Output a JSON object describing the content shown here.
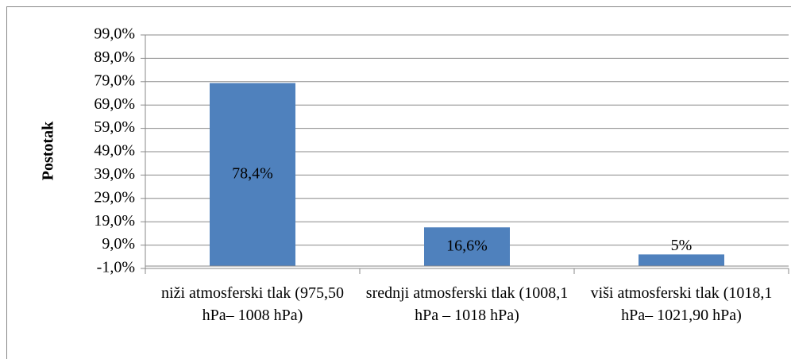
{
  "chart_data": {
    "type": "bar",
    "y_label": "Postotak",
    "categories": [
      "niži atmosferski tlak (975,50 hPa– 1008 hPa)",
      "srednji atmosferski tlak (1008,1 hPa – 1018 hPa)",
      "viši atmosferski tlak (1018,1 hPa– 1021,90 hPa)"
    ],
    "values": [
      78.4,
      16.6,
      5
    ],
    "value_labels": [
      "78,4%",
      "16,6%",
      "5%"
    ],
    "color": "#4f81bd",
    "ylim": [
      -1,
      99
    ],
    "yticks": [
      {
        "value": -1,
        "label": "-1,0%"
      },
      {
        "value": 9,
        "label": "9,0%"
      },
      {
        "value": 19,
        "label": "19,0%"
      },
      {
        "value": 29,
        "label": "29,0%"
      },
      {
        "value": 39,
        "label": "39,0%"
      },
      {
        "value": 49,
        "label": "49,0%"
      },
      {
        "value": 59,
        "label": "59,0%"
      },
      {
        "value": 69,
        "label": "69,0%"
      },
      {
        "value": 79,
        "label": "79,0%"
      },
      {
        "value": 89,
        "label": "89,0%"
      },
      {
        "value": 99,
        "label": "99,0%"
      }
    ],
    "grid": true
  }
}
